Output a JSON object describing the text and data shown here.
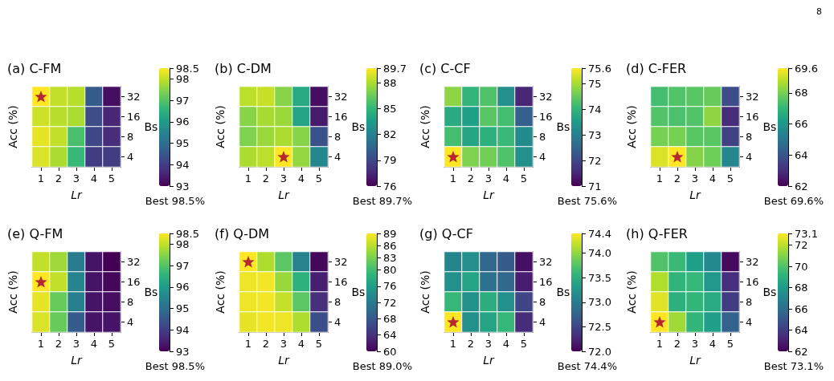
{
  "chart_data": [
    {
      "type": "heatmap",
      "title": "(a) C-FM",
      "xlabel": "Lr",
      "ylabel": "Bs",
      "clabel": "Acc (%)",
      "categories": [
        "1",
        "2",
        "3",
        "4",
        "5"
      ],
      "y_categories": [
        "32",
        "16",
        "8",
        "4"
      ],
      "cells": [
        [
          98.5,
          98.0,
          97.9,
          94.6,
          93.2
        ],
        [
          98.1,
          97.9,
          97.8,
          94.3,
          93.6
        ],
        [
          98.3,
          98.0,
          96.9,
          94.2,
          93.7
        ],
        [
          98.2,
          97.8,
          96.7,
          94.0,
          94.0
        ]
      ],
      "clim": [
        93,
        98.5
      ],
      "cticks": [
        93,
        94,
        95,
        96,
        97,
        98,
        98.5
      ],
      "annotations": [
        "Best 98.5%"
      ]
    },
    {
      "type": "heatmap",
      "title": "(b) C-DM",
      "xlabel": "Lr",
      "ylabel": "Bs",
      "clabel": "Acc (%)",
      "categories": [
        "1",
        "2",
        "3",
        "4",
        "5"
      ],
      "y_categories": [
        "32",
        "16",
        "8",
        "4"
      ],
      "cells": [
        [
          88.3,
          88.6,
          87.2,
          84.3,
          76.5
        ],
        [
          87.2,
          87.9,
          87.6,
          84.0,
          77.0
        ],
        [
          87.0,
          87.6,
          88.0,
          87.2,
          79.5
        ],
        [
          88.0,
          88.3,
          89.7,
          87.5,
          82.3
        ]
      ],
      "clim": [
        76,
        89.7
      ],
      "cticks": [
        76,
        79,
        82,
        85,
        88,
        89.7
      ],
      "annotations": [
        "Best 89.7%"
      ]
    },
    {
      "type": "heatmap",
      "title": "(c) C-CF",
      "xlabel": "Lr",
      "ylabel": "Bs",
      "clabel": "Acc (%)",
      "categories": [
        "1",
        "2",
        "3",
        "4",
        "5"
      ],
      "y_categories": [
        "32",
        "16",
        "8",
        "4"
      ],
      "cells": [
        [
          74.8,
          74.0,
          74.3,
          73.3,
          71.5
        ],
        [
          73.8,
          73.6,
          74.4,
          74.2,
          72.4
        ],
        [
          74.2,
          73.7,
          73.9,
          74.1,
          73.2
        ],
        [
          75.6,
          74.7,
          74.6,
          74.3,
          73.3
        ]
      ],
      "clim": [
        71,
        75.6
      ],
      "cticks": [
        71,
        72,
        73,
        74,
        75,
        75.6
      ],
      "annotations": [
        "Best 75.6%"
      ]
    },
    {
      "type": "heatmap",
      "title": "(d) C-FER",
      "xlabel": "Lr",
      "ylabel": "Bs",
      "clabel": "Acc (%)",
      "categories": [
        "1",
        "2",
        "3",
        "4",
        "5"
      ],
      "y_categories": [
        "32",
        "16",
        "8",
        "4"
      ],
      "cells": [
        [
          67.3,
          67.5,
          67.6,
          67.8,
          63.8
        ],
        [
          67.5,
          67.4,
          67.5,
          68.3,
          63.0
        ],
        [
          68.0,
          68.0,
          67.6,
          67.6,
          63.5
        ],
        [
          69.2,
          69.6,
          68.2,
          67.9,
          65.5
        ]
      ],
      "clim": [
        62,
        69.6
      ],
      "cticks": [
        62,
        64,
        66,
        68,
        69.6
      ],
      "annotations": [
        "Best 69.6%",
        "8"
      ]
    },
    {
      "type": "heatmap",
      "title": "(e) Q-FM",
      "xlabel": "Lr",
      "ylabel": "Bs",
      "clabel": "Acc (%)",
      "categories": [
        "1",
        "2",
        "3",
        "4",
        "5"
      ],
      "y_categories": [
        "32",
        "16",
        "8",
        "4"
      ],
      "cells": [
        [
          98.0,
          97.7,
          95.3,
          93.3,
          93.0
        ],
        [
          98.5,
          98.0,
          95.5,
          93.3,
          93.1
        ],
        [
          98.3,
          97.2,
          95.4,
          93.3,
          93.2
        ],
        [
          98.2,
          97.2,
          94.6,
          93.3,
          93.3
        ]
      ],
      "clim": [
        93,
        98.5
      ],
      "cticks": [
        93,
        94,
        95,
        96,
        97,
        98,
        98.5
      ],
      "annotations": [
        "Best 98.5%"
      ]
    },
    {
      "type": "heatmap",
      "title": "(f) Q-DM",
      "xlabel": "Lr",
      "ylabel": "Bs",
      "clabel": "Acc (%)",
      "categories": [
        "1",
        "2",
        "3",
        "4",
        "5"
      ],
      "y_categories": [
        "32",
        "16",
        "8",
        "4"
      ],
      "cells": [
        [
          89.0,
          85.5,
          81.5,
          73.0,
          60.5
        ],
        [
          88.3,
          88.5,
          84.5,
          78.5,
          62.5
        ],
        [
          88.3,
          88.5,
          86.5,
          81.5,
          64.0
        ],
        [
          88.0,
          88.5,
          88.3,
          85.5,
          67.0
        ]
      ],
      "clim": [
        60,
        89
      ],
      "cticks": [
        60,
        64,
        68,
        72,
        76,
        80,
        83,
        86,
        89
      ],
      "annotations": [
        "Best 89.0%"
      ]
    },
    {
      "type": "heatmap",
      "title": "(g) Q-CF",
      "xlabel": "Lr",
      "ylabel": "Bs",
      "clabel": "Acc (%)",
      "categories": [
        "1",
        "2",
        "3",
        "4",
        "5"
      ],
      "y_categories": [
        "32",
        "16",
        "8",
        "4"
      ],
      "cells": [
        [
          73.1,
          73.2,
          72.8,
          72.7,
          72.1
        ],
        [
          73.2,
          73.4,
          72.9,
          72.8,
          72.2
        ],
        [
          73.6,
          73.2,
          73.5,
          73.2,
          72.5
        ],
        [
          74.4,
          73.2,
          73.4,
          73.6,
          72.3
        ]
      ],
      "clim": [
        72,
        74.4
      ],
      "cticks": [
        {
          "value": 72,
          "label": "72.0"
        },
        72.5,
        {
          "value": 73,
          "label": "73.0"
        },
        73.5,
        {
          "value": 74,
          "label": "74.0"
        },
        74.4
      ],
      "annotations": [
        "Best 74.4%"
      ]
    },
    {
      "type": "heatmap",
      "title": "(h) Q-FER",
      "xlabel": "Lr",
      "ylabel": "Bs",
      "clabel": "Acc (%)",
      "categories": [
        "1",
        "2",
        "3",
        "4",
        "5"
      ],
      "y_categories": [
        "32",
        "16",
        "8",
        "4"
      ],
      "cells": [
        [
          70.0,
          69.5,
          68.2,
          67.3,
          62.3
        ],
        [
          71.8,
          69.2,
          69.4,
          67.9,
          63.5
        ],
        [
          72.6,
          69.0,
          69.3,
          68.8,
          64.0
        ],
        [
          73.1,
          71.5,
          69.3,
          68.2,
          65.5
        ]
      ],
      "clim": [
        62,
        73.1
      ],
      "cticks": [
        62,
        64,
        66,
        68,
        70,
        72,
        73.1
      ],
      "annotations": [
        "Best 73.1%"
      ]
    }
  ]
}
